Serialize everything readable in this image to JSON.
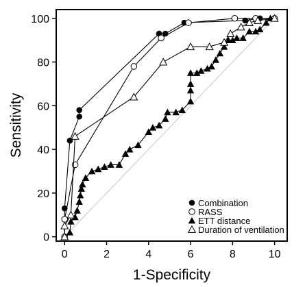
{
  "chart_data": {
    "type": "line",
    "xlabel": "1-Specificity",
    "ylabel": "Sensitivity",
    "xlim": [
      -0.4,
      10.6
    ],
    "ylim": [
      -2,
      104
    ],
    "xticks": [
      0,
      2,
      4,
      6,
      8,
      10
    ],
    "yticks": [
      0,
      20,
      40,
      60,
      80,
      100
    ],
    "grid": false,
    "legend_position": "bottom-right",
    "reference_line": {
      "from": [
        0,
        0
      ],
      "to": [
        10,
        100
      ],
      "color": "#c8c8c8"
    },
    "series": [
      {
        "name": "Combination",
        "marker": "filled-circle",
        "color": "#000000",
        "points": [
          [
            0,
            0
          ],
          [
            0,
            13
          ],
          [
            0.25,
            44
          ],
          [
            0.7,
            55
          ],
          [
            0.7,
            58
          ],
          [
            4.5,
            93
          ],
          [
            4.8,
            93
          ],
          [
            5.7,
            98
          ],
          [
            8.6,
            99
          ],
          [
            9.3,
            100
          ],
          [
            10,
            100
          ]
        ]
      },
      {
        "name": "RASS",
        "marker": "open-circle",
        "color": "#000000",
        "points": [
          [
            0,
            0
          ],
          [
            0,
            8
          ],
          [
            0.5,
            33
          ],
          [
            3.3,
            78
          ],
          [
            4.6,
            91
          ],
          [
            5.9,
            98
          ],
          [
            8.1,
            100
          ],
          [
            9.1,
            100
          ],
          [
            10,
            100
          ]
        ]
      },
      {
        "name": "ETT distance",
        "marker": "filled-triangle",
        "color": "#000000",
        "points": [
          [
            0,
            0
          ],
          [
            0.25,
            2
          ],
          [
            0.3,
            7
          ],
          [
            0.5,
            9
          ],
          [
            0.6,
            12
          ],
          [
            0.7,
            16
          ],
          [
            0.75,
            19
          ],
          [
            0.8,
            22
          ],
          [
            0.85,
            24
          ],
          [
            1.0,
            27
          ],
          [
            1.3,
            30
          ],
          [
            1.6,
            31
          ],
          [
            1.9,
            32
          ],
          [
            2.2,
            33
          ],
          [
            2.6,
            33
          ],
          [
            2.9,
            38
          ],
          [
            3.1,
            40
          ],
          [
            3.5,
            42
          ],
          [
            4.0,
            48
          ],
          [
            4.2,
            50
          ],
          [
            4.5,
            51
          ],
          [
            4.8,
            54
          ],
          [
            4.9,
            57
          ],
          [
            5.3,
            57
          ],
          [
            5.6,
            58
          ],
          [
            6.0,
            62
          ],
          [
            6.0,
            67
          ],
          [
            6.0,
            70
          ],
          [
            6.0,
            75
          ],
          [
            6.3,
            75
          ],
          [
            6.5,
            76
          ],
          [
            6.8,
            77
          ],
          [
            7.0,
            78
          ],
          [
            7.2,
            81
          ],
          [
            7.4,
            84
          ],
          [
            7.6,
            87
          ],
          [
            7.8,
            90
          ],
          [
            8.0,
            90
          ],
          [
            8.2,
            91
          ],
          [
            8.5,
            91
          ],
          [
            8.8,
            94
          ],
          [
            9.1,
            94
          ],
          [
            9.3,
            95
          ],
          [
            9.6,
            98
          ],
          [
            9.8,
            100
          ],
          [
            10,
            100
          ]
        ]
      },
      {
        "name": "Duration of ventilation",
        "marker": "open-triangle",
        "color": "#000000",
        "points": [
          [
            0,
            0
          ],
          [
            0,
            5
          ],
          [
            0.3,
            10
          ],
          [
            0.5,
            46
          ],
          [
            3.3,
            64
          ],
          [
            4.7,
            80
          ],
          [
            6.0,
            87
          ],
          [
            6.9,
            87
          ],
          [
            7.6,
            89
          ],
          [
            7.9,
            93
          ],
          [
            8.4,
            96
          ],
          [
            8.8,
            98
          ],
          [
            9.2,
            99
          ],
          [
            10,
            100
          ]
        ]
      }
    ]
  }
}
